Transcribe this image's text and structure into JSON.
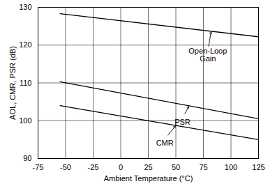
{
  "chart_data": {
    "type": "line",
    "x_label": "Ambient Temperature (°C)",
    "y_label": "AOL, CMR, PSR (dB)",
    "x": [
      -55,
      125
    ],
    "series": [
      {
        "name": "Open-Loop Gain",
        "color": "#000000",
        "values": [
          128.3,
          122.2
        ]
      },
      {
        "name": "PSR",
        "color": "#000000",
        "values": [
          110.3,
          100.5
        ]
      },
      {
        "name": "CMR",
        "color": "#000000",
        "values": [
          104.0,
          95.0
        ]
      }
    ],
    "xlim": [
      -75,
      125
    ],
    "xticks": [
      -75,
      -50,
      -25,
      0,
      25,
      50,
      75,
      100,
      125
    ],
    "ylim": [
      90,
      130
    ],
    "yticks": [
      90,
      100,
      110,
      120,
      130
    ],
    "grid": true
  }
}
